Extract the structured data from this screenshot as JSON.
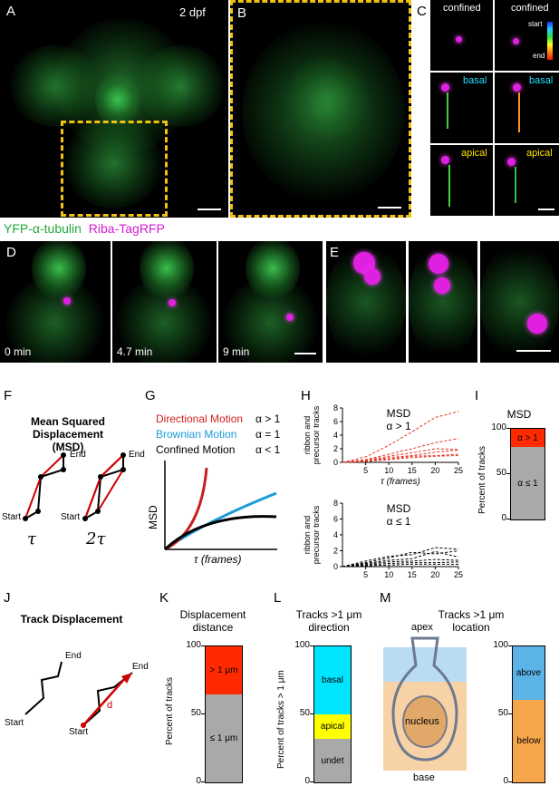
{
  "panels": {
    "A": {
      "letter": "A",
      "label": "2 dpf"
    },
    "B": {
      "letter": "B"
    },
    "C": {
      "letter": "C",
      "labels": [
        "confined",
        "confined",
        "basal",
        "basal",
        "apical",
        "apical"
      ],
      "colorbar_start": "start",
      "colorbar_end": "end"
    },
    "legend": {
      "yfp": "YFP-α-tubulin",
      "riba": "Riba-TagRFP"
    },
    "D": {
      "letter": "D",
      "times": [
        "0 min",
        "4.7 min",
        "9 min"
      ]
    },
    "E": {
      "letter": "E"
    },
    "F": {
      "letter": "F",
      "title1": "Mean Squared Displacement",
      "title2": "(MSD)",
      "start": "Start",
      "end": "End",
      "tau": "τ",
      "tau2": "2τ"
    },
    "G": {
      "letter": "G",
      "rows": [
        {
          "name": "Directional Motion",
          "alpha": "α > 1",
          "color": "#d62020"
        },
        {
          "name": "Brownian Motion",
          "alpha": "α = 1",
          "color": "#1a9bd7"
        },
        {
          "name": "Confined Motion",
          "alpha": "α < 1",
          "color": "#000000"
        }
      ],
      "ylabel": "MSD",
      "xlabel": "τ (frames)"
    },
    "H": {
      "letter": "H",
      "top_title1": "MSD",
      "top_title2": "α > 1",
      "bottom_title1": "MSD",
      "bottom_title2": "α ≤ 1",
      "ylabel1": "ribbon and",
      "ylabel2": "precursor tracks",
      "xlabel": "τ (frames)",
      "top_yticks": [
        "0",
        "2",
        "4",
        "6",
        "8"
      ],
      "bottom_yticks": [
        "0",
        "2",
        "4",
        "6",
        "8"
      ],
      "xticks": [
        "5",
        "10",
        "15",
        "20",
        "25"
      ]
    },
    "I": {
      "letter": "I",
      "title": "MSD",
      "ylabel": "Percent of tracks",
      "yticks": [
        "0",
        "50",
        "100"
      ],
      "segments": [
        {
          "label": "α > 1",
          "color": "#ff2a00"
        },
        {
          "label": "α ≤ 1",
          "color": "#a9a9a9"
        }
      ]
    },
    "J": {
      "letter": "J",
      "title": "Track Displacement",
      "start": "Start",
      "end": "End",
      "d": "d"
    },
    "K": {
      "letter": "K",
      "title1": "Displacement",
      "title2": "distance",
      "ylabel": "Percent of tracks",
      "yticks": [
        "0",
        "50",
        "100"
      ],
      "segments": [
        {
          "label": "> 1 μm",
          "color": "#ff2a00"
        },
        {
          "label": "≤ 1 μm",
          "color": "#a9a9a9"
        }
      ]
    },
    "L": {
      "letter": "L",
      "title1": "Tracks >1 μm",
      "title2": "direction",
      "ylabel": "Percent of tracks > 1 μm",
      "yticks": [
        "0",
        "50",
        "100"
      ],
      "segments": [
        {
          "label": "basal",
          "color": "#00e5ff"
        },
        {
          "label": "apical",
          "color": "#ffff00"
        },
        {
          "label": "undet",
          "color": "#a9a9a9"
        }
      ]
    },
    "M": {
      "letter": "M",
      "title1": "Tracks >1 μm",
      "title2": "location",
      "apex": "apex",
      "base": "base",
      "nucleus": "nucleus",
      "yticks": [
        "0",
        "50",
        "100"
      ],
      "segments": [
        {
          "label": "above",
          "color": "#5bb3e8"
        },
        {
          "label": "below",
          "color": "#f5a54a"
        }
      ]
    }
  },
  "chart_data": [
    {
      "type": "bar",
      "panel": "I",
      "categories": [
        "MSD"
      ],
      "series": [
        {
          "name": "α ≤ 1",
          "values": [
            80
          ]
        },
        {
          "name": "α > 1",
          "values": [
            20
          ]
        }
      ],
      "ylabel": "Percent of tracks",
      "ylim": [
        0,
        100
      ]
    },
    {
      "type": "bar",
      "panel": "K",
      "categories": [
        "Displacement distance"
      ],
      "series": [
        {
          "name": "≤ 1 μm",
          "values": [
            65
          ]
        },
        {
          "name": "> 1 μm",
          "values": [
            35
          ]
        }
      ],
      "ylabel": "Percent of tracks",
      "ylim": [
        0,
        100
      ]
    },
    {
      "type": "bar",
      "panel": "L",
      "categories": [
        "Tracks >1 μm direction"
      ],
      "series": [
        {
          "name": "undet",
          "values": [
            32
          ]
        },
        {
          "name": "apical",
          "values": [
            18
          ]
        },
        {
          "name": "basal",
          "values": [
            50
          ]
        }
      ],
      "ylabel": "Percent of tracks > 1 μm",
      "ylim": [
        0,
        100
      ]
    },
    {
      "type": "bar",
      "panel": "M",
      "categories": [
        "Tracks >1 μm location"
      ],
      "series": [
        {
          "name": "below",
          "values": [
            61
          ]
        },
        {
          "name": "above",
          "values": [
            39
          ]
        }
      ],
      "ylim": [
        0,
        100
      ]
    },
    {
      "type": "line",
      "panel": "H-top",
      "title": "MSD α > 1",
      "xlabel": "τ (frames)",
      "ylabel": "ribbon and precursor tracks",
      "ylim": [
        0,
        8
      ],
      "xlim": [
        0,
        25
      ],
      "x": [
        0,
        5,
        10,
        15,
        20,
        25
      ],
      "series": [
        {
          "values": [
            0,
            0.8,
            2.5,
            4.5,
            6.6,
            7.5
          ]
        },
        {
          "values": [
            0,
            0.4,
            1.2,
            2.0,
            2.9,
            3.5
          ]
        },
        {
          "values": [
            0,
            0.3,
            0.9,
            1.4,
            2.0,
            1.9
          ]
        },
        {
          "values": [
            0,
            0.2,
            0.7,
            1.0,
            1.5,
            1.8
          ]
        },
        {
          "values": [
            0,
            0.2,
            0.5,
            0.9,
            1.0,
            1.2
          ]
        },
        {
          "values": [
            0,
            0.1,
            0.4,
            0.7,
            0.9,
            1.0
          ]
        }
      ]
    },
    {
      "type": "line",
      "panel": "H-bottom",
      "title": "MSD α ≤ 1",
      "xlabel": "τ (frames)",
      "ylabel": "ribbon and precursor tracks",
      "ylim": [
        0,
        8
      ],
      "xlim": [
        0,
        25
      ],
      "x": [
        0,
        5,
        10,
        15,
        20,
        25
      ],
      "series": [
        {
          "values": [
            0,
            0.7,
            1.3,
            1.5,
            2.4,
            2.2
          ]
        },
        {
          "values": [
            0,
            0.5,
            1.1,
            1.8,
            1.6,
            2.0
          ]
        },
        {
          "values": [
            0,
            0.4,
            0.8,
            1.0,
            1.9,
            1.2
          ]
        },
        {
          "values": [
            0,
            0.3,
            0.6,
            0.7,
            0.9,
            0.8
          ]
        },
        {
          "values": [
            0,
            0.2,
            0.4,
            0.5,
            0.5,
            0.6
          ]
        },
        {
          "values": [
            0,
            0.1,
            0.2,
            0.3,
            0.3,
            0.3
          ]
        }
      ]
    }
  ]
}
